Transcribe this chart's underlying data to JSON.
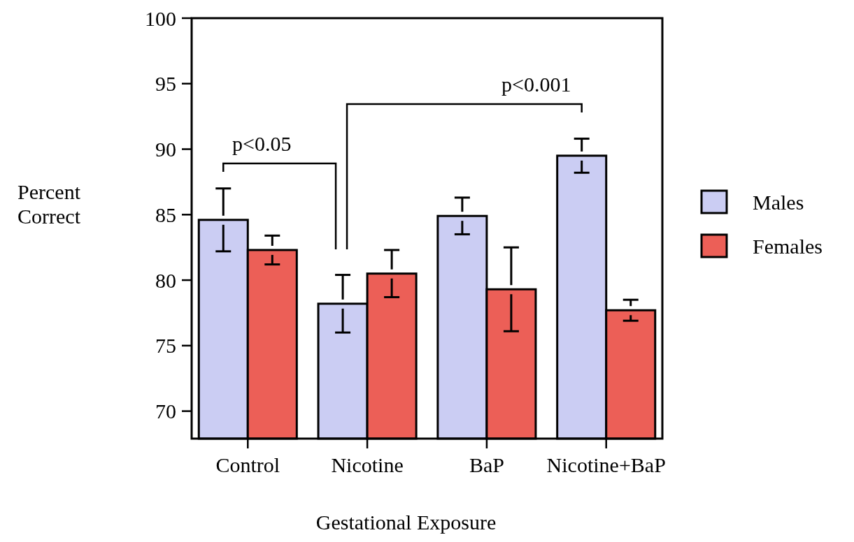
{
  "chart_data": {
    "type": "bar",
    "xlabel": "Gestational Exposure",
    "ylabel": "Percent Correct",
    "categories": [
      "Control",
      "Nicotine",
      "BaP",
      "Nicotine+BaP"
    ],
    "series": [
      {
        "name": "Males",
        "color": "#cbcdf3",
        "values": [
          84.6,
          78.2,
          84.9,
          89.5
        ],
        "errors": [
          2.4,
          2.2,
          1.4,
          1.3
        ]
      },
      {
        "name": "Females",
        "color": "#ec5f57",
        "values": [
          82.3,
          80.5,
          79.3,
          77.7
        ],
        "errors": [
          1.1,
          1.8,
          3.2,
          0.8
        ]
      }
    ],
    "ylim": [
      67.9,
      100
    ],
    "yticks": [
      70,
      75,
      80,
      85,
      90,
      95,
      100
    ],
    "grid": false,
    "legend": "right",
    "annotations": [
      "p<0.05",
      "p<0.001"
    ]
  }
}
